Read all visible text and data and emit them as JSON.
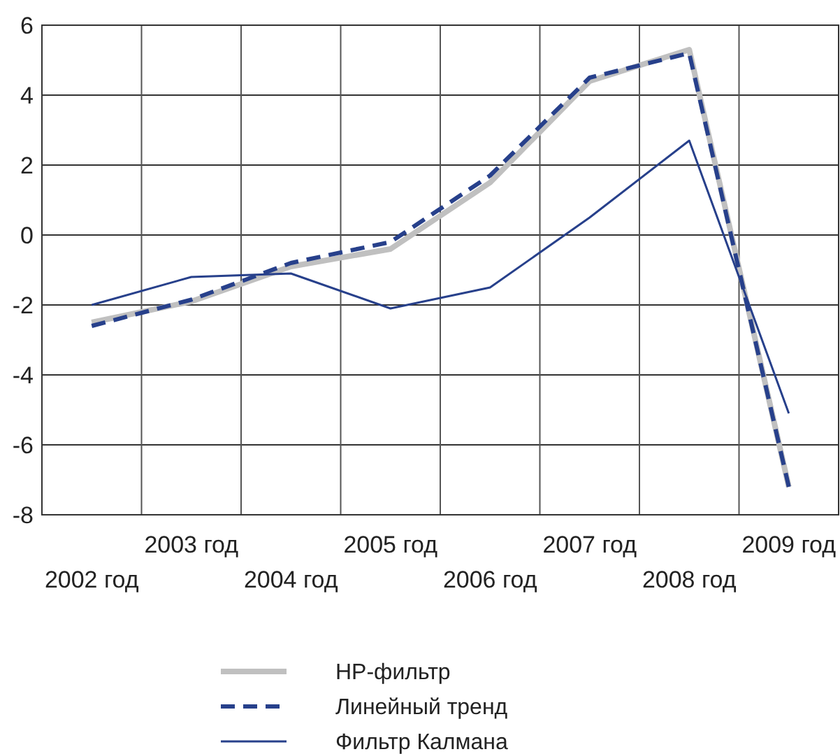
{
  "chart_data": {
    "type": "line",
    "categories": [
      "2002 год",
      "2003 год",
      "2004 год",
      "2005 год",
      "2006 год",
      "2007 год",
      "2008 год",
      "2009 год"
    ],
    "series": [
      {
        "name": "HP-фильтр",
        "color": "#c0c0c0",
        "line_style": "solid",
        "values": [
          -2.5,
          -1.9,
          -0.9,
          -0.4,
          1.5,
          4.4,
          5.3,
          -7.2
        ]
      },
      {
        "name": "Линейный тренд",
        "color": "#27408b",
        "line_style": "dashed",
        "values": [
          -2.6,
          -1.85,
          -0.8,
          -0.2,
          1.7,
          4.5,
          5.2,
          -7.2
        ]
      },
      {
        "name": "Фильтр Калмана",
        "color": "#27408b",
        "line_style": "solid",
        "values": [
          -2.0,
          -1.2,
          -1.1,
          -2.1,
          -1.5,
          0.5,
          2.7,
          -5.1
        ]
      }
    ],
    "ylim": [
      -8,
      6
    ],
    "yticks": [
      -8,
      -6,
      -4,
      -2,
      0,
      2,
      4,
      6
    ],
    "grid": true,
    "legend": "bottom",
    "marker": "none"
  }
}
